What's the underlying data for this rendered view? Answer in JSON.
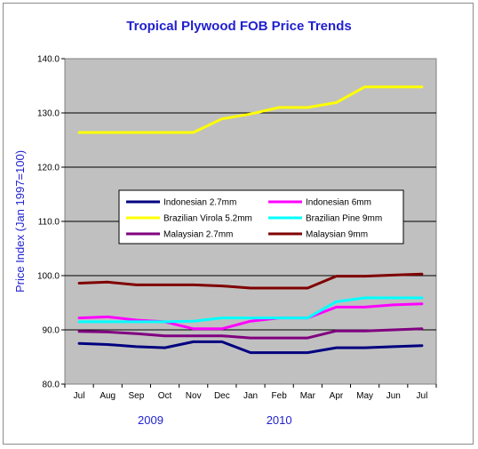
{
  "chart_data": {
    "type": "line",
    "title": "Tropical Plywood FOB Price Trends",
    "ylabel": "Price Index (Jan 1997=100)",
    "xlabel": "",
    "categories": [
      "Jul",
      "Aug",
      "Sep",
      "Oct",
      "Nov",
      "Dec",
      "Jan",
      "Feb",
      "Mar",
      "Apr",
      "May",
      "Jun",
      "Jul"
    ],
    "year_labels": [
      {
        "text": "2009",
        "at_index": 2.5
      },
      {
        "text": "2010",
        "at_index": 7
      }
    ],
    "ylim": [
      80.0,
      140.0
    ],
    "yticks": [
      "80.0",
      "90.0",
      "100.0",
      "110.0",
      "120.0",
      "130.0",
      "140.0"
    ],
    "grid": true,
    "plot_background": "#c0c0c0",
    "legend_position": "center",
    "series": [
      {
        "name": "Indonesian 2.7mm",
        "color": "#000080",
        "values": [
          87.5,
          87.3,
          86.9,
          86.7,
          87.8,
          87.8,
          85.8,
          85.8,
          85.8,
          86.7,
          86.7,
          86.9,
          87.1
        ]
      },
      {
        "name": "Indonesian 6mm",
        "color": "#ff00ff",
        "values": [
          92.2,
          92.4,
          91.8,
          91.5,
          90.2,
          90.2,
          91.6,
          92.2,
          92.2,
          94.2,
          94.2,
          94.6,
          94.8
        ]
      },
      {
        "name": "Brazilian Virola 5.2mm",
        "color": "#ffff00",
        "values": [
          126.4,
          126.4,
          126.4,
          126.4,
          126.4,
          128.9,
          129.8,
          131.0,
          131.0,
          131.9,
          134.8,
          134.8,
          134.8
        ]
      },
      {
        "name": "Brazilian Pine 9mm",
        "color": "#00ffff",
        "values": [
          91.5,
          91.5,
          91.5,
          91.5,
          91.6,
          92.2,
          92.2,
          92.2,
          92.2,
          95.2,
          95.9,
          95.9,
          95.9
        ]
      },
      {
        "name": "Malaysian 2.7mm",
        "color": "#800080",
        "values": [
          89.7,
          89.6,
          89.3,
          88.9,
          88.9,
          88.9,
          88.5,
          88.5,
          88.5,
          89.8,
          89.8,
          90.0,
          90.2
        ]
      },
      {
        "name": "Malaysian 9mm",
        "color": "#800000",
        "values": [
          98.6,
          98.8,
          98.3,
          98.3,
          98.3,
          98.1,
          97.7,
          97.7,
          97.7,
          99.9,
          99.9,
          100.1,
          100.3
        ]
      }
    ]
  }
}
